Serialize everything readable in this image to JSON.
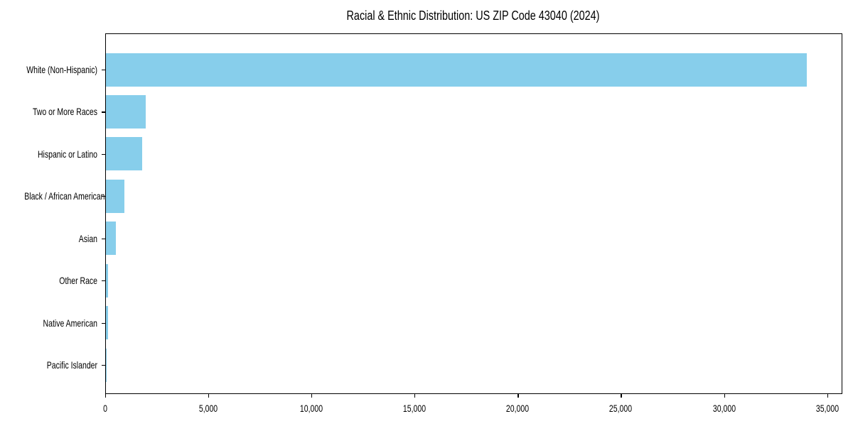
{
  "chart_data": {
    "type": "bar",
    "orientation": "horizontal",
    "title": "Racial & Ethnic Distribution: US ZIP Code 43040 (2024)",
    "categories": [
      "White (Non-Hispanic)",
      "Two or More Races",
      "Hispanic or Latino",
      "Black / African American",
      "Asian",
      "Other Race",
      "Native American",
      "Pacific Islander"
    ],
    "values": [
      33970,
      1930,
      1770,
      905,
      495,
      115,
      110,
      10
    ],
    "xlabel": "",
    "ylabel": "",
    "xlim": [
      0,
      35669
    ],
    "x_ticks": [
      0,
      5000,
      10000,
      15000,
      20000,
      25000,
      30000,
      35000
    ],
    "x_tick_labels": [
      "0",
      "5,000",
      "10,000",
      "15,000",
      "20,000",
      "25,000",
      "30,000",
      "35,000"
    ],
    "bar_color": "#87CEEB",
    "spine_color": "#000000",
    "grid": false,
    "legend": null,
    "background": "#ffffff"
  }
}
